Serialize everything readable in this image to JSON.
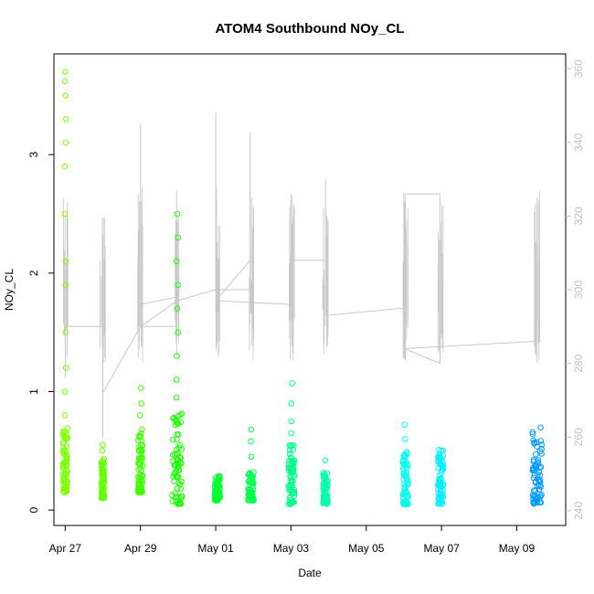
{
  "chart_data": {
    "type": "scatter",
    "title": "ATOM4 Southbound NOy_CL",
    "xlabel": "Date",
    "ylabel": "NOy_CL",
    "x_ticks": [
      "Apr 27",
      "Apr 29",
      "May 01",
      "May 03",
      "May 05",
      "May 07",
      "May 09"
    ],
    "xlim": [
      "2018-04-26T16:48",
      "2018-05-10T07:12"
    ],
    "ylim": [
      -0.13,
      3.85
    ],
    "y_ticks": [
      0,
      1,
      2,
      3
    ],
    "y2lim": [
      236,
      364
    ],
    "y2_ticks": [
      240,
      260,
      280,
      300,
      320,
      340,
      360
    ],
    "grid": false,
    "legend": "none",
    "colors": {
      "axis": "#000000",
      "secondary_axis": "#bfbfbf",
      "secondary_line": "#c8c8c8"
    },
    "series": [
      {
        "x": "2018-04-27T00:00",
        "y_min": 0.15,
        "y_max": 0.7,
        "y_spike": [
          0.8,
          1.0,
          1.2,
          1.5,
          1.9,
          2.1,
          2.5,
          2.9,
          3.1,
          3.3,
          3.5,
          3.62,
          3.7
        ],
        "spread_h": 2.5,
        "color": "#7fff00"
      },
      {
        "x": "2018-04-28T00:00",
        "y_min": 0.1,
        "y_max": 0.45,
        "y_spike": [
          0.5,
          0.55
        ],
        "spread_h": 1.5,
        "color": "#66ff00"
      },
      {
        "x": "2018-04-29T00:00",
        "y_min": 0.15,
        "y_max": 0.72,
        "y_spike": [
          0.8,
          0.9,
          1.03
        ],
        "spread_h": 2.5,
        "color": "#40ff00"
      },
      {
        "x": "2018-04-29T23:30",
        "y_min": 0.05,
        "y_max": 0.85,
        "y_spike": [
          0.95,
          1.1,
          1.3,
          1.5,
          1.7,
          1.9,
          2.1,
          2.3,
          2.5
        ],
        "spread_h": 5.5,
        "color": "#1aff00"
      },
      {
        "x": "2018-05-01T01:00",
        "y_min": 0.08,
        "y_max": 0.3,
        "y_spike": [],
        "spread_h": 3,
        "color": "#00ff33"
      },
      {
        "x": "2018-05-01T22:30",
        "y_min": 0.08,
        "y_max": 0.32,
        "y_spike": [
          0.45,
          0.58,
          0.68
        ],
        "spread_h": 3,
        "color": "#00ff4d"
      },
      {
        "x": "2018-05-03T00:30",
        "y_min": 0.05,
        "y_max": 0.55,
        "y_spike": [
          0.65,
          0.75,
          0.9,
          1.07
        ],
        "spread_h": 3.5,
        "color": "#00ff88"
      },
      {
        "x": "2018-05-03T22:00",
        "y_min": 0.05,
        "y_max": 0.32,
        "y_spike": [
          0.42
        ],
        "spread_h": 2.5,
        "color": "#00ffaa"
      },
      {
        "x": "2018-05-06T01:00",
        "y_min": 0.05,
        "y_max": 0.5,
        "y_spike": [
          0.6,
          0.72
        ],
        "spread_h": 3,
        "color": "#00ffee"
      },
      {
        "x": "2018-05-06T23:30",
        "y_min": 0.05,
        "y_max": 0.55,
        "y_spike": [],
        "spread_h": 3,
        "color": "#00eeff"
      },
      {
        "x": "2018-05-09T13:00",
        "y_min": 0.05,
        "y_max": 0.7,
        "y_spike": [],
        "spread_h": 5,
        "color": "#0099ff"
      }
    ],
    "secondary_line": {
      "points": [
        [
          "2018-04-27T00:00",
          276
        ],
        [
          "2018-04-27T00:00",
          290
        ],
        [
          "2018-04-28T00:00",
          290
        ],
        [
          "2018-04-28T00:00",
          260
        ],
        [
          "2018-04-28T00:00",
          272
        ],
        [
          "2018-04-29T00:00",
          290
        ],
        [
          "2018-04-29T00:00",
          345
        ],
        [
          "2018-04-29T00:00",
          296
        ],
        [
          "2018-04-29T23:00",
          298
        ],
        [
          "2018-04-29T23:00",
          327
        ],
        [
          "2018-04-29T23:00",
          290
        ],
        [
          "2018-04-29T00:00",
          290
        ],
        [
          "2018-04-29T23:30",
          297
        ],
        [
          "2018-05-01T00:00",
          300
        ],
        [
          "2018-05-01T00:00",
          348
        ],
        [
          "2018-05-01T00:00",
          300
        ],
        [
          "2018-05-01T22:00",
          300
        ],
        [
          "2018-05-01T22:00",
          343
        ],
        [
          "2018-05-01T22:00",
          308
        ],
        [
          "2018-05-01T00:00",
          297
        ],
        [
          "2018-05-03T00:00",
          296
        ],
        [
          "2018-05-03T00:00",
          326
        ],
        [
          "2018-05-03T00:00",
          308
        ],
        [
          "2018-05-03T22:00",
          308
        ],
        [
          "2018-05-03T22:00",
          330
        ],
        [
          "2018-05-03T22:00",
          293
        ],
        [
          "2018-05-06T00:00",
          295
        ],
        [
          "2018-05-06T00:00",
          326
        ],
        [
          "2018-05-06T23:00",
          326
        ],
        [
          "2018-05-06T23:00",
          280
        ],
        [
          "2018-05-06T00:00",
          284
        ],
        [
          "2018-05-09T13:00",
          286
        ],
        [
          "2018-05-09T13:00",
          325
        ],
        [
          "2018-05-09T13:00",
          280
        ]
      ]
    }
  }
}
